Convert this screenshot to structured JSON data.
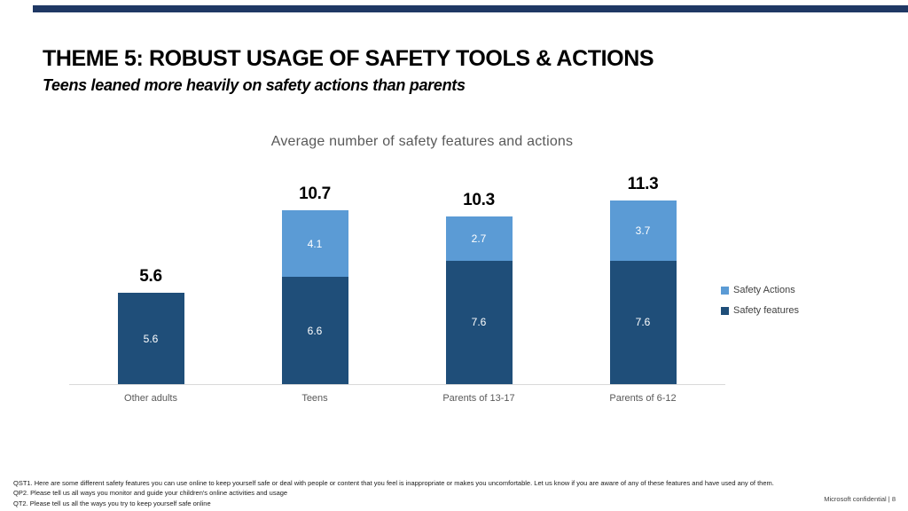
{
  "slide": {
    "accent_bar_color": "#1F3864",
    "title_prefix": "THEME 5:",
    "title_rest": " ROBUST USAGE OF SAFETY TOOLS & ACTIONS",
    "subtitle": "Teens leaned more heavily on safety actions than parents",
    "footnotes": [
      "QST1. Here are some different safety features you can use online to keep yourself safe or deal with people or content that you feel is inappropriate or makes you uncomfortable.   Let us know if you are aware of any of these features and have used any of them.",
      "QP2. Please tell us all ways you monitor and guide your children's online activities and usage",
      "QT2. Please tell us all the ways you try to keep yourself safe online"
    ],
    "footer_right": "Microsoft confidential | 8"
  },
  "chart_data": {
    "type": "bar",
    "stacked": true,
    "title": "Average number of safety features and actions",
    "categories": [
      "Other adults",
      "Teens",
      "Parents of 13-17",
      "Parents of 6-12"
    ],
    "series": [
      {
        "name": "Safety features",
        "color": "#1F4E79",
        "values": [
          5.6,
          6.6,
          7.6,
          7.6
        ]
      },
      {
        "name": "Safety Actions",
        "color": "#5B9BD5",
        "values": [
          0,
          4.1,
          2.7,
          3.7
        ]
      }
    ],
    "totals": [
      5.6,
      10.7,
      10.3,
      11.3
    ],
    "legend_items": [
      {
        "label": "Safety Actions",
        "color": "#5B9BD5"
      },
      {
        "label": "Safety features",
        "color": "#1F4E79"
      }
    ],
    "legend_position": "right",
    "ylim": [
      0,
      12
    ],
    "gridlines": false,
    "data_labels": "white, centered in each segment; bold totals above bars",
    "xlabel": "",
    "ylabel": ""
  }
}
